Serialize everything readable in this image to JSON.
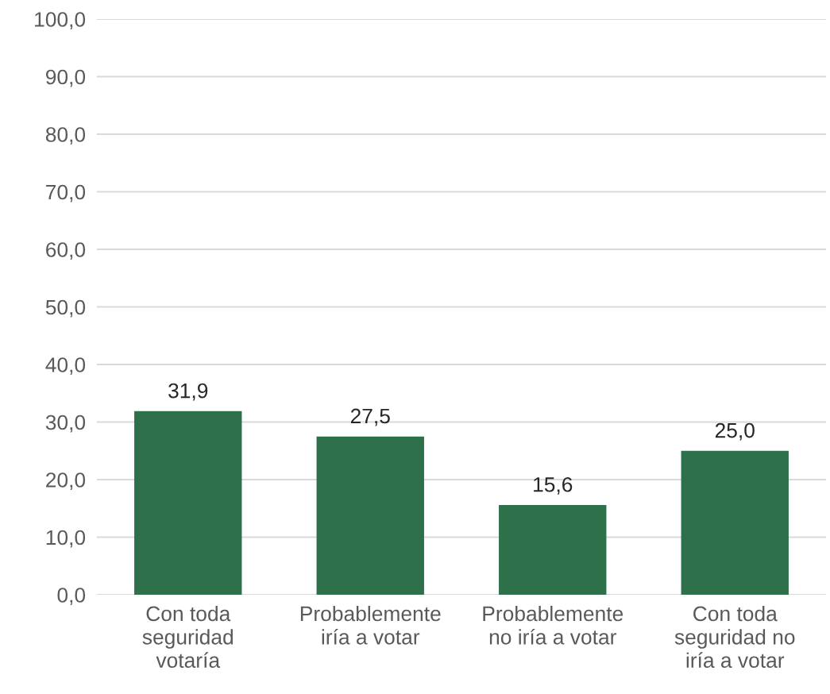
{
  "chart_data": {
    "type": "bar",
    "categories": [
      "Con toda\nseguridad\nvotaría",
      "Probablemente\niría a votar",
      "Probablemente\nno iría a votar",
      "Con toda\nseguridad no\niría a votar"
    ],
    "values": [
      31.9,
      27.5,
      15.6,
      25.0
    ],
    "value_labels": [
      "31,9",
      "27,5",
      "15,6",
      "25,0"
    ],
    "color": "#2e7049",
    "ylim": [
      0,
      100
    ],
    "yticks": [
      {
        "value": 0,
        "label": "0,0"
      },
      {
        "value": 10,
        "label": "10,0"
      },
      {
        "value": 20,
        "label": "20,0"
      },
      {
        "value": 30,
        "label": "30,0"
      },
      {
        "value": 40,
        "label": "40,0"
      },
      {
        "value": 50,
        "label": "50,0"
      },
      {
        "value": 60,
        "label": "60,0"
      },
      {
        "value": 70,
        "label": "70,0"
      },
      {
        "value": 80,
        "label": "80,0"
      },
      {
        "value": 90,
        "label": "90,0"
      },
      {
        "value": 100,
        "label": "100,0"
      }
    ],
    "grid": "y"
  }
}
